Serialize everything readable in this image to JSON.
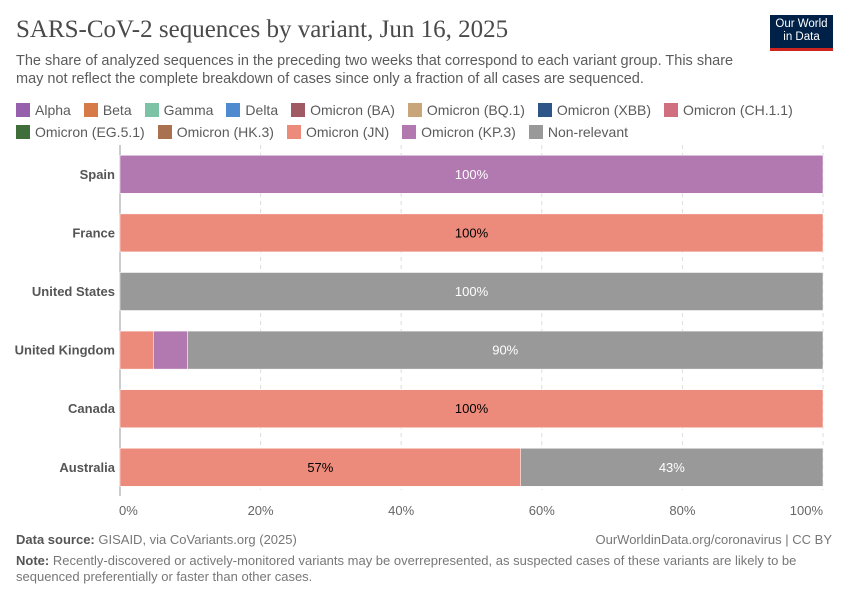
{
  "title": "SARS-CoV-2 sequences by variant, Jun 16, 2025",
  "subtitle": "The share of analyzed sequences in the preceding two weeks that correspond to each variant group. This share may not reflect the complete breakdown of cases since only a fraction of all cases are sequenced.",
  "logo": {
    "line1": "Our World",
    "line2": "in Data"
  },
  "legend": [
    {
      "label": "Alpha",
      "color": "#9660ad"
    },
    {
      "label": "Beta",
      "color": "#d67a47"
    },
    {
      "label": "Gamma",
      "color": "#7cc2a4"
    },
    {
      "label": "Delta",
      "color": "#4f8ad0"
    },
    {
      "label": "Omicron (BA)",
      "color": "#a05a63"
    },
    {
      "label": "Omicron (BQ.1)",
      "color": "#c9a57a"
    },
    {
      "label": "Omicron (XBB)",
      "color": "#2d5587"
    },
    {
      "label": "Omicron (CH.1.1)",
      "color": "#cf6f80"
    },
    {
      "label": "Omicron (EG.5.1)",
      "color": "#3f6e3a"
    },
    {
      "label": "Omicron (HK.3)",
      "color": "#aa7150"
    },
    {
      "label": "Omicron (JN)",
      "color": "#ec8b7b"
    },
    {
      "label": "Omicron (KP.3)",
      "color": "#b278b0"
    },
    {
      "label": "Non-relevant",
      "color": "#999999"
    }
  ],
  "chart_data": {
    "type": "bar",
    "orientation": "horizontal",
    "stacked": true,
    "categories": [
      "Spain",
      "France",
      "United States",
      "United Kingdom",
      "Canada",
      "Australia"
    ],
    "series": [
      {
        "name": "Omicron (JN)",
        "color": "#ec8b7b",
        "values": [
          0,
          100,
          0,
          4.8,
          100,
          57
        ],
        "labels": [
          "",
          "100%",
          "",
          "",
          "100%",
          "57%"
        ]
      },
      {
        "name": "Omicron (KP.3)",
        "color": "#b278b0",
        "values": [
          100,
          0,
          0,
          4.8,
          0,
          0
        ],
        "labels": [
          "100%",
          "",
          "",
          "",
          "",
          ""
        ]
      },
      {
        "name": "Non-relevant",
        "color": "#999999",
        "values": [
          0,
          0,
          100,
          90.4,
          0,
          43
        ],
        "labels": [
          "",
          "",
          "100%",
          "90%",
          "",
          "43%"
        ]
      }
    ],
    "xlim": [
      0,
      100
    ],
    "xticks": [
      "0%",
      "20%",
      "40%",
      "60%",
      "80%",
      "100%"
    ],
    "grid": "vertical dashed",
    "legend_position": "top"
  },
  "footer": {
    "source_label": "Data source:",
    "source": "GISAID, via CoVariants.org (2025)",
    "url": "OurWorldinData.org/coronavirus | CC BY",
    "note_label": "Note:",
    "note": "Recently-discovered or actively-monitored variants may be overrepresented, as suspected cases of these variants are likely to be sequenced preferentially or faster than other cases."
  }
}
